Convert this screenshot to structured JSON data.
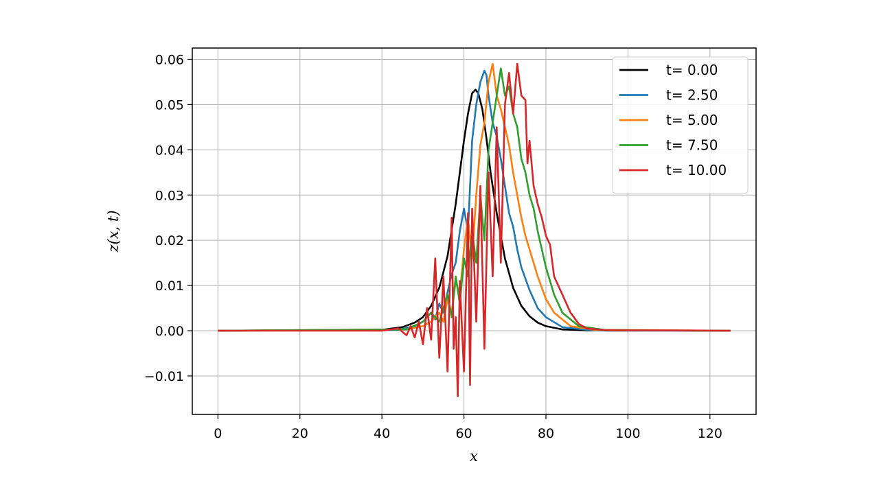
{
  "chart_data": {
    "type": "line",
    "title": "",
    "xlabel": "x",
    "ylabel": "z(x, t)",
    "xlim": [
      -6.25,
      131.25
    ],
    "ylim": [
      -0.0185,
      0.0625
    ],
    "xticks": [
      0,
      20,
      40,
      60,
      80,
      100,
      120
    ],
    "yticks": [
      -0.01,
      0.0,
      0.01,
      0.02,
      0.03,
      0.04,
      0.05,
      0.06
    ],
    "xtick_labels": [
      "0",
      "20",
      "40",
      "60",
      "80",
      "100",
      "120"
    ],
    "ytick_labels": [
      "−0.01",
      "0.00",
      "0.01",
      "0.02",
      "0.03",
      "0.04",
      "0.05",
      "0.06"
    ],
    "grid": true,
    "legend_position": "top-right",
    "series": [
      {
        "name": "t= 0.00",
        "color": "#000000",
        "x": [
          0,
          40,
          45,
          48,
          50,
          52,
          54,
          56,
          58,
          59,
          60,
          61,
          62,
          62.8,
          63.5,
          64.5,
          65.5,
          66.5,
          68,
          70,
          72,
          74,
          76,
          78,
          80,
          84,
          90,
          125
        ],
        "y": [
          0,
          0.0002,
          0.0008,
          0.0018,
          0.003,
          0.0055,
          0.0095,
          0.0165,
          0.028,
          0.035,
          0.042,
          0.048,
          0.0525,
          0.0533,
          0.0525,
          0.049,
          0.0425,
          0.035,
          0.026,
          0.016,
          0.0095,
          0.0055,
          0.0032,
          0.0018,
          0.001,
          0.0003,
          0.0001,
          0
        ]
      },
      {
        "name": "t= 2.50",
        "color": "#1f77b4",
        "x": [
          0,
          44,
          48,
          50,
          52,
          53,
          54,
          55,
          56,
          57,
          58,
          59,
          60,
          61,
          62,
          63,
          64,
          65,
          65.5,
          66,
          67,
          68,
          69,
          70,
          71,
          72,
          73,
          74,
          76,
          78,
          80,
          84,
          90,
          95,
          125
        ],
        "y": [
          0,
          0.0002,
          0.001,
          0.002,
          0.004,
          0.0025,
          0.006,
          0.004,
          0.0085,
          0.0125,
          0.015,
          0.022,
          0.027,
          0.022,
          0.042,
          0.05,
          0.055,
          0.0575,
          0.0565,
          0.052,
          0.046,
          0.043,
          0.038,
          0.032,
          0.026,
          0.023,
          0.018,
          0.014,
          0.009,
          0.005,
          0.003,
          0.0008,
          0.0002,
          0,
          0
        ]
      },
      {
        "name": "t= 5.00",
        "color": "#ff7f0e",
        "x": [
          0,
          46,
          50,
          52,
          54,
          55,
          56,
          57,
          58,
          59,
          60,
          61,
          62,
          63,
          64,
          65,
          66,
          67,
          68,
          69,
          70,
          71,
          72,
          73,
          74,
          75,
          76,
          78,
          80,
          82,
          86,
          92,
          125
        ],
        "y": [
          0,
          0.0003,
          0.001,
          0.002,
          0.004,
          0.002,
          0.007,
          0.004,
          0.011,
          0.008,
          0.018,
          0.025,
          0.016,
          0.03,
          0.041,
          0.046,
          0.055,
          0.059,
          0.052,
          0.049,
          0.045,
          0.041,
          0.035,
          0.03,
          0.025,
          0.021,
          0.018,
          0.012,
          0.007,
          0.004,
          0.001,
          0.0002,
          0
        ]
      },
      {
        "name": "t= 7.50",
        "color": "#2ca02c",
        "x": [
          0,
          46,
          50,
          52,
          54,
          56,
          57,
          58,
          59,
          60,
          61,
          62,
          63,
          64,
          65,
          66,
          67,
          68,
          69,
          70,
          71,
          72,
          73,
          74,
          75,
          76,
          77,
          78,
          80,
          82,
          84,
          88,
          95,
          125
        ],
        "y": [
          0,
          0.0003,
          0.002,
          0.004,
          0.002,
          0.008,
          0.003,
          0.012,
          0.006,
          0.016,
          0.012,
          0.022,
          0.015,
          0.03,
          0.02,
          0.04,
          0.046,
          0.052,
          0.058,
          0.052,
          0.054,
          0.048,
          0.045,
          0.038,
          0.035,
          0.03,
          0.027,
          0.022,
          0.014,
          0.008,
          0.004,
          0.001,
          0.0001,
          0
        ]
      },
      {
        "name": "t= 10.00",
        "color": "#d62728",
        "x": [
          0,
          40,
          44,
          46,
          47,
          48,
          49,
          50,
          51,
          52,
          53,
          54,
          55,
          56,
          57,
          57.5,
          58,
          58.5,
          59,
          60,
          61,
          61.5,
          62,
          63,
          64,
          65,
          66,
          67,
          68,
          69,
          70,
          71,
          72,
          73,
          74,
          75,
          75.5,
          76,
          77,
          78,
          79,
          80,
          81,
          82,
          84,
          86,
          88,
          90,
          95,
          125
        ],
        "y": [
          0,
          0,
          0.0005,
          -0.001,
          0.001,
          -0.0015,
          0.002,
          -0.003,
          0.005,
          -0.002,
          0.016,
          -0.006,
          0.012,
          -0.009,
          0.025,
          -0.004,
          0.003,
          -0.0145,
          0.011,
          -0.009,
          0.026,
          -0.012,
          0.027,
          0.002,
          0.032,
          -0.004,
          0.035,
          0.012,
          0.045,
          0.015,
          0.05,
          0.057,
          0.048,
          0.059,
          0.052,
          0.051,
          0.037,
          0.042,
          0.032,
          0.028,
          0.025,
          0.021,
          0.019,
          0.012,
          0.008,
          0.004,
          0.0015,
          0.0005,
          0.0001,
          0
        ]
      }
    ]
  }
}
